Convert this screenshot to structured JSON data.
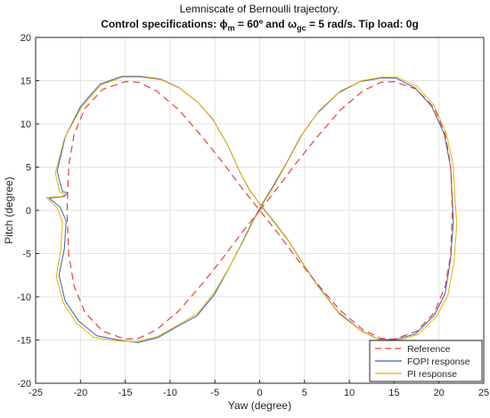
{
  "chart_data": {
    "type": "line",
    "title": "Lemniscate of Bernoulli trajectory.",
    "subtitle": {
      "prefix": "Control specifications: ",
      "phi_symbol": "ϕ",
      "phi_sub": "m",
      "phi_value": " = 60º and ",
      "omega_symbol": "ω",
      "omega_sub": "gc",
      "omega_value": " = 5 rad/s. Tip load: 0g"
    },
    "xlabel": "Yaw (degree)",
    "ylabel": "Pitch (degree)",
    "xlim": [
      -25,
      25
    ],
    "ylim": [
      -20,
      20
    ],
    "xticks": [
      -25,
      -20,
      -15,
      -10,
      -5,
      0,
      5,
      10,
      15,
      20,
      25
    ],
    "yticks": [
      -20,
      -15,
      -10,
      -5,
      0,
      5,
      10,
      15,
      20
    ],
    "grid": true,
    "legend_position": "bottom-right",
    "series": [
      {
        "name": "Reference",
        "color": "#e8413d",
        "dash": "dashed",
        "x": [
          0,
          2.0,
          4.1,
          6.5,
          9.0,
          11.5,
          13.5,
          15.0,
          17.5,
          19.5,
          20.7,
          21.3,
          21.5,
          21.3,
          20.7,
          19.5,
          17.5,
          15.0,
          13.5,
          11.5,
          9.0,
          6.5,
          4.1,
          2.0,
          0,
          -2.0,
          -4.1,
          -6.5,
          -9.0,
          -11.5,
          -13.5,
          -15.0,
          -17.5,
          -19.5,
          -20.7,
          -21.3,
          -21.5,
          -21.3,
          -20.7,
          -19.5,
          -17.5,
          -15.0,
          -13.5,
          -11.5,
          -9.0,
          -6.5,
          -4.1,
          -2.0,
          0
        ],
        "y": [
          0,
          2.6,
          5.5,
          8.6,
          11.6,
          13.8,
          14.8,
          14.9,
          14.0,
          11.8,
          8.8,
          5.2,
          0,
          -5.2,
          -8.8,
          -11.8,
          -14.0,
          -14.9,
          -14.8,
          -13.8,
          -11.6,
          -8.6,
          -5.5,
          -2.6,
          0,
          2.6,
          5.5,
          8.6,
          11.6,
          13.8,
          14.8,
          14.9,
          14.0,
          11.8,
          8.8,
          5.2,
          0,
          -5.2,
          -8.8,
          -11.8,
          -14.0,
          -14.9,
          -14.8,
          -13.8,
          -11.6,
          -8.6,
          -5.5,
          -2.6,
          0
        ]
      },
      {
        "name": "FOPI response",
        "color": "#3b5fbd",
        "dash": "solid",
        "x": [
          -23.5,
          -22.3,
          -21.6,
          -21.8,
          -22.4,
          -21.7,
          -20.2,
          -18.2,
          -15.8,
          -13.6,
          -11.3,
          -9.3,
          -7.0,
          -5.1,
          -3.6,
          -2.1,
          -0.9,
          0.2,
          1.5,
          3.0,
          4.6,
          6.4,
          8.8,
          11.2,
          13.5,
          15.2,
          17.3,
          19.2,
          20.6,
          21.3,
          21.5,
          21.6,
          21.3,
          20.7,
          19.5,
          17.4,
          15.0,
          13.2,
          11.3,
          8.8,
          6.4,
          4.6,
          3.0,
          1.5,
          0.2,
          -1.1,
          -2.2,
          -3.6,
          -5.2,
          -6.9,
          -9.0,
          -11.1,
          -13.3,
          -15.4,
          -17.8,
          -20.0,
          -21.7,
          -22.6,
          -22.0,
          -21.4,
          -21.8,
          -23.5
        ],
        "y": [
          1.4,
          0.4,
          -1.2,
          -4.5,
          -7.5,
          -10.5,
          -12.8,
          -14.5,
          -15.0,
          -15.3,
          -14.7,
          -13.5,
          -12.2,
          -9.8,
          -7.0,
          -4.0,
          -1.5,
          0.6,
          2.8,
          5.5,
          8.6,
          11.2,
          13.6,
          14.9,
          15.3,
          15.3,
          14.2,
          12.0,
          8.8,
          5.0,
          1.0,
          -1.3,
          -5.6,
          -9.6,
          -12.1,
          -14.3,
          -15.0,
          -14.9,
          -13.9,
          -11.8,
          -8.6,
          -5.8,
          -3.2,
          -1.2,
          0.5,
          2.3,
          4.4,
          7.6,
          10.5,
          12.5,
          14.2,
          15.2,
          15.5,
          15.5,
          14.6,
          12.0,
          8.5,
          4.5,
          2.2,
          2.0,
          1.6,
          1.4
        ]
      },
      {
        "name": "PI response",
        "color": "#e8b400",
        "dash": "solid",
        "x": [
          -23.8,
          -22.6,
          -22.0,
          -22.2,
          -22.7,
          -21.9,
          -20.5,
          -18.5,
          -16.0,
          -13.8,
          -11.4,
          -9.2,
          -6.9,
          -5.0,
          -3.4,
          -1.9,
          -0.7,
          0.4,
          1.7,
          3.2,
          4.8,
          6.6,
          9.0,
          11.4,
          13.6,
          15.3,
          17.5,
          19.4,
          20.8,
          21.6,
          21.8,
          22.0,
          21.7,
          21.0,
          19.7,
          17.6,
          15.2,
          13.4,
          11.4,
          8.9,
          6.5,
          4.7,
          3.1,
          1.6,
          0.3,
          -1.0,
          -2.1,
          -3.5,
          -5.1,
          -6.8,
          -8.9,
          -11.0,
          -13.2,
          -15.3,
          -17.7,
          -19.9,
          -21.8,
          -22.8,
          -22.3,
          -21.7,
          -22.1,
          -23.8
        ],
        "y": [
          1.5,
          0.3,
          -1.4,
          -4.6,
          -7.7,
          -10.7,
          -13.0,
          -14.7,
          -15.1,
          -15.2,
          -14.6,
          -13.3,
          -11.9,
          -9.4,
          -6.6,
          -3.7,
          -1.2,
          0.8,
          3.0,
          5.8,
          8.9,
          11.5,
          13.8,
          15.0,
          15.4,
          15.4,
          14.4,
          12.2,
          9.0,
          5.2,
          1.2,
          -1.5,
          -5.9,
          -9.8,
          -12.3,
          -14.4,
          -15.1,
          -15.0,
          -14.0,
          -12.0,
          -8.8,
          -6.0,
          -3.4,
          -1.4,
          0.3,
          2.2,
          4.2,
          7.4,
          10.3,
          12.4,
          14.1,
          15.1,
          15.4,
          15.4,
          14.5,
          11.9,
          8.3,
          4.3,
          2.1,
          1.9,
          1.6,
          1.5
        ]
      }
    ]
  }
}
